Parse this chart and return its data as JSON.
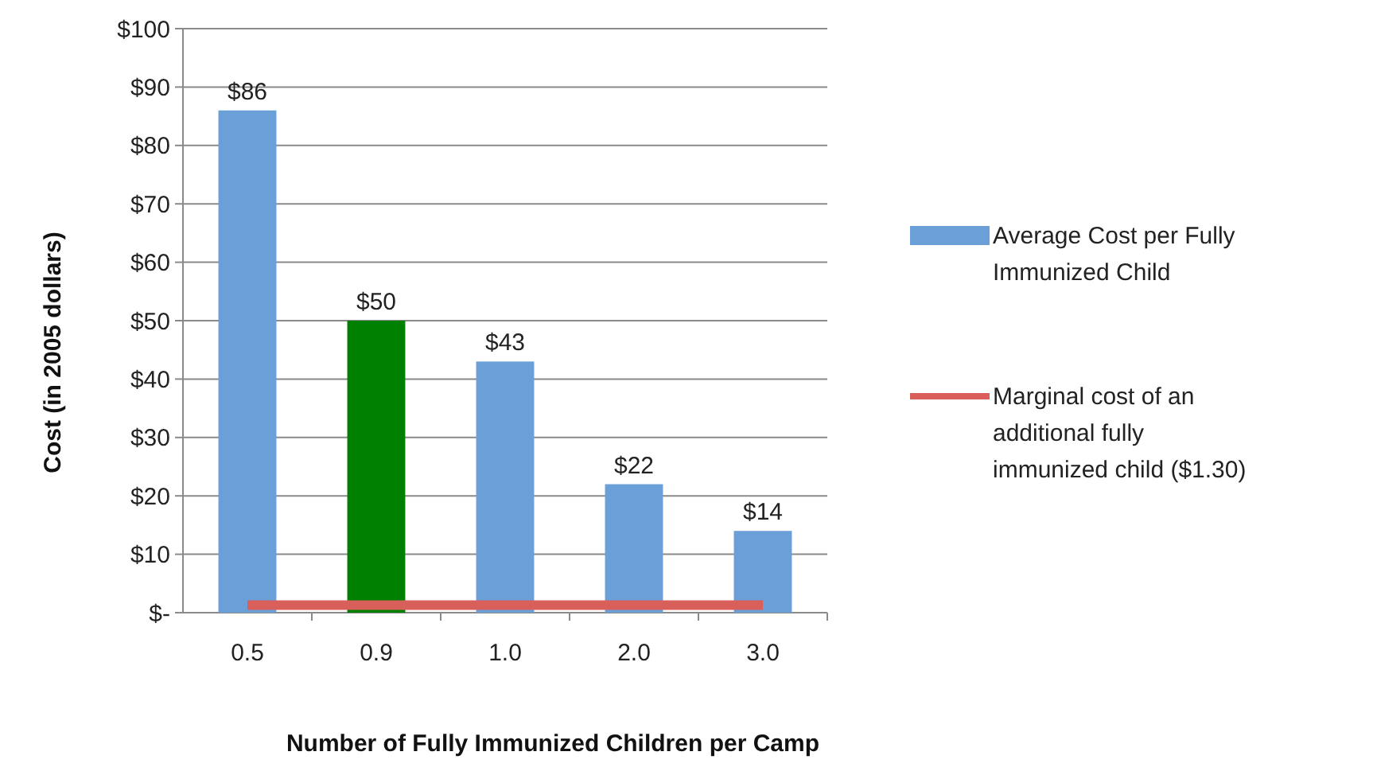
{
  "chart_data": {
    "type": "bar",
    "xlabel": "Number of Fully Immunized Children per Camp",
    "ylabel": "Cost (in 2005 dollars)",
    "categories": [
      "0.5",
      "0.9",
      "1.0",
      "2.0",
      "3.0"
    ],
    "series": [
      {
        "name": "Average Cost per Fully Immunized Child",
        "color": "#6a9fd8",
        "colors": [
          "#6a9fd8",
          "#008000",
          "#6a9fd8",
          "#6a9fd8",
          "#6a9fd8"
        ],
        "values": [
          86,
          50,
          43,
          22,
          14
        ],
        "value_labels": [
          "$86",
          "$50",
          "$43",
          "$22",
          "$14"
        ]
      },
      {
        "name": "Marginal cost of an additional fully immunized child ($1.30)",
        "type": "line",
        "color": "#d9605a",
        "values": [
          1.3,
          1.3,
          1.3,
          1.3,
          1.3
        ]
      }
    ],
    "ylim": [
      0,
      100
    ],
    "yticks": [
      {
        "value": 0,
        "label": "$-"
      },
      {
        "value": 10,
        "label": "$10"
      },
      {
        "value": 20,
        "label": "$20"
      },
      {
        "value": 30,
        "label": "$30"
      },
      {
        "value": 40,
        "label": "$40"
      },
      {
        "value": 50,
        "label": "$50"
      },
      {
        "value": 60,
        "label": "$60"
      },
      {
        "value": 70,
        "label": "$70"
      },
      {
        "value": 80,
        "label": "$80"
      },
      {
        "value": 90,
        "label": "$90"
      },
      {
        "value": 100,
        "label": "$100"
      }
    ],
    "grid": "y",
    "legend": "right"
  }
}
